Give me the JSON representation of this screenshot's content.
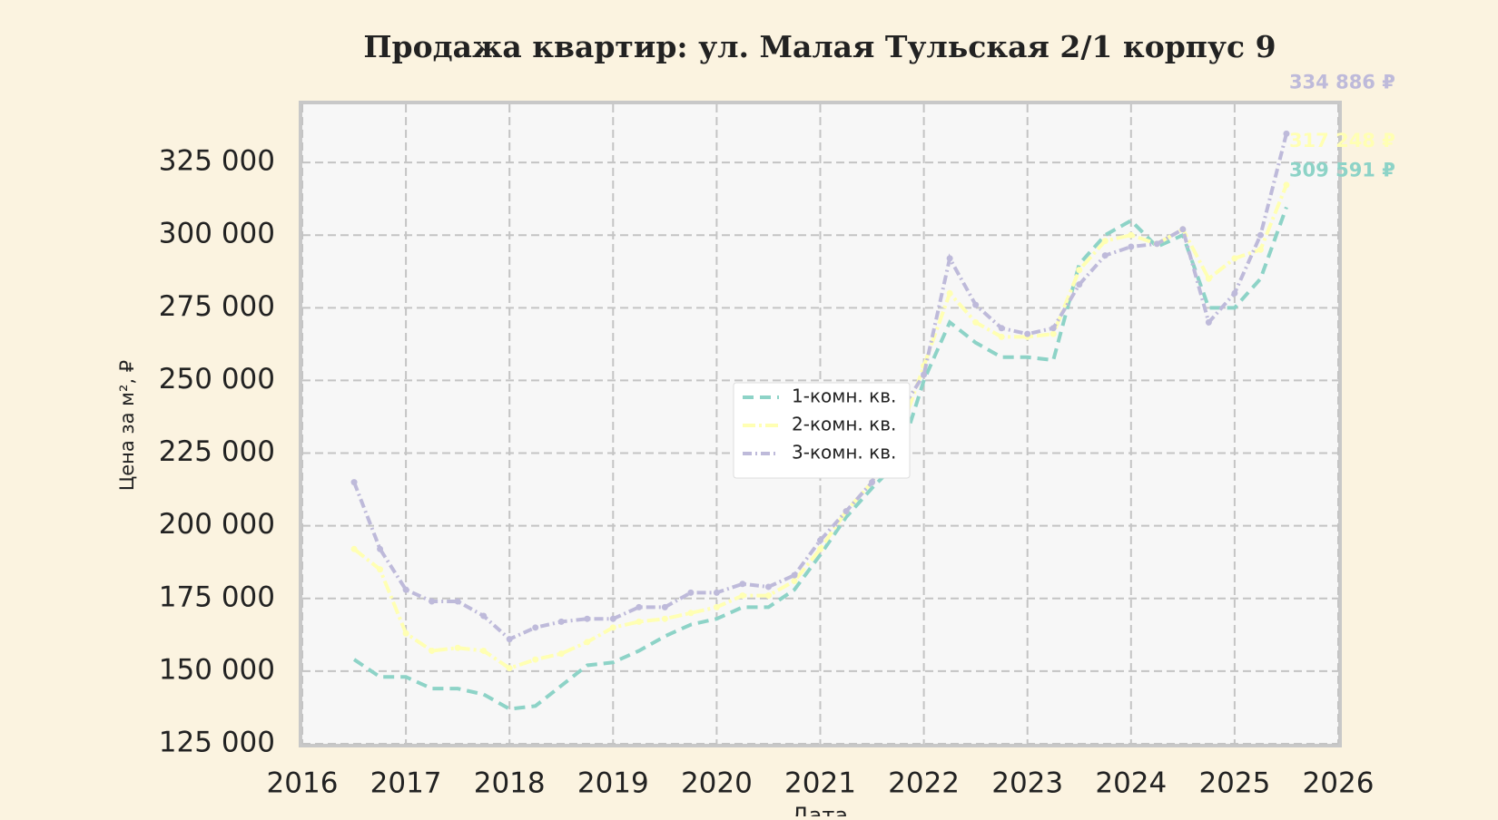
{
  "chart_data": {
    "type": "line",
    "title": "Продажа квартир: ул. Малая Тульская 2/1 корпус 9",
    "x_label": "Дата",
    "y_label": "Цена за м², ₽",
    "x": [
      2016.5,
      2016.75,
      2017,
      2017.25,
      2017.5,
      2017.75,
      2018,
      2018.25,
      2018.5,
      2018.75,
      2019,
      2019.25,
      2019.5,
      2019.75,
      2020,
      2020.25,
      2020.5,
      2020.75,
      2021,
      2021.25,
      2021.5,
      2021.75,
      2022,
      2022.25,
      2022.5,
      2022.75,
      2023,
      2023.25,
      2023.5,
      2023.75,
      2024,
      2024.25,
      2024.5,
      2024.75,
      2025,
      2025.25,
      2025.5
    ],
    "series": [
      {
        "name": "1-комн. кв.",
        "color": "#8dd3c7",
        "dash": "12 7",
        "markers": false,
        "values": [
          154000,
          148000,
          148000,
          144000,
          144000,
          142000,
          137000,
          138000,
          145000,
          152000,
          153000,
          157000,
          162000,
          166000,
          168000,
          172000,
          172000,
          178000,
          190000,
          203000,
          213000,
          222000,
          250000,
          270000,
          263000,
          258000,
          258000,
          257000,
          290000,
          300000,
          305000,
          296000,
          300000,
          275000,
          275000,
          285000,
          309591
        ],
        "value_labels": [
          null,
          null,
          null,
          null,
          null,
          null,
          null,
          null,
          null,
          null,
          null,
          null,
          null,
          null,
          null,
          null,
          null,
          null,
          null,
          null,
          null,
          null,
          null,
          null,
          null,
          null,
          null,
          null,
          null,
          null,
          null,
          null,
          null,
          null,
          null,
          null,
          "309 591 ₽"
        ]
      },
      {
        "name": "2-комн. кв.",
        "color": "#ffffb3",
        "dash": "14 4 3 4",
        "markers": true,
        "values": [
          192000,
          185000,
          163000,
          157000,
          158000,
          157000,
          151000,
          154000,
          156000,
          160000,
          165000,
          167000,
          168000,
          170000,
          172000,
          176000,
          176000,
          181000,
          192000,
          205000,
          215000,
          230000,
          255000,
          280000,
          270000,
          265000,
          265000,
          266000,
          288000,
          298000,
          300000,
          297000,
          302000,
          285000,
          292000,
          295000,
          317248
        ],
        "value_labels": [
          null,
          null,
          null,
          null,
          null,
          null,
          null,
          null,
          null,
          null,
          null,
          null,
          null,
          null,
          null,
          null,
          null,
          null,
          null,
          null,
          null,
          null,
          null,
          null,
          null,
          null,
          null,
          null,
          null,
          null,
          null,
          null,
          null,
          null,
          null,
          null,
          "317 248 ₽"
        ]
      },
      {
        "name": "3-комн. кв.",
        "color": "#bebada",
        "dash": "10 4 2 4",
        "markers": true,
        "values": [
          215000,
          192000,
          178000,
          174000,
          174000,
          169000,
          161000,
          165000,
          167000,
          168000,
          168000,
          172000,
          172000,
          177000,
          177000,
          180000,
          179000,
          183000,
          195000,
          205000,
          215000,
          238000,
          252000,
          292000,
          276000,
          268000,
          266000,
          268000,
          283000,
          293000,
          296000,
          297000,
          302000,
          270000,
          280000,
          300000,
          334886
        ],
        "value_labels": [
          null,
          null,
          null,
          null,
          null,
          null,
          null,
          null,
          null,
          null,
          null,
          null,
          null,
          null,
          null,
          null,
          null,
          null,
          null,
          null,
          null,
          null,
          null,
          null,
          null,
          null,
          null,
          null,
          null,
          null,
          null,
          null,
          null,
          null,
          null,
          null,
          "334 886 ₽"
        ]
      }
    ],
    "xlim": [
      2016,
      2026
    ],
    "xticks": [
      2016,
      2017,
      2018,
      2019,
      2020,
      2021,
      2022,
      2023,
      2024,
      2025,
      2026
    ],
    "ylim": [
      125000,
      345000
    ],
    "yticks": [
      {
        "value": 125000,
        "label": "125 000"
      },
      {
        "value": 150000,
        "label": "150 000"
      },
      {
        "value": 175000,
        "label": "175 000"
      },
      {
        "value": 200000,
        "label": "200 000"
      },
      {
        "value": 225000,
        "label": "225 000"
      },
      {
        "value": 250000,
        "label": "250 000"
      },
      {
        "value": 275000,
        "label": "275 000"
      },
      {
        "value": 300000,
        "label": "300 000"
      },
      {
        "value": 325000,
        "label": "325 000"
      }
    ],
    "grid": true,
    "legend": "center"
  }
}
